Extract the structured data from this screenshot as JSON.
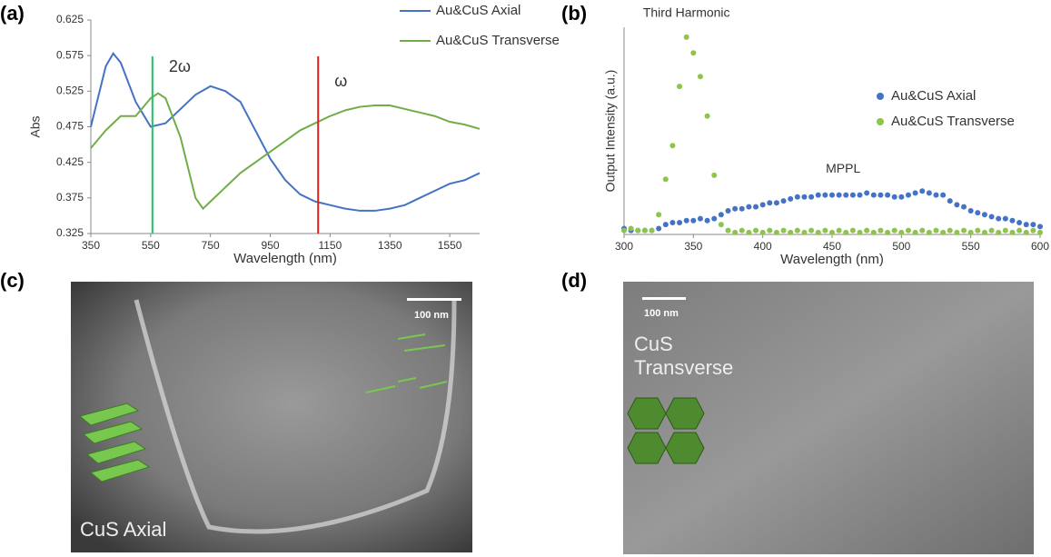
{
  "panel_labels": [
    "(a)",
    "(b)",
    "(c)",
    "(d)"
  ],
  "images": [
    {
      "scale_bar": "100 nm",
      "caption": "CuS Axial"
    },
    {
      "scale_bar": "100 nm",
      "caption": "CuS Transverse"
    }
  ],
  "chart_data": [
    {
      "type": "line",
      "ylabel": "Abs",
      "xlabel": "Wavelength (nm)",
      "xlim": [
        350,
        1650
      ],
      "ylim": [
        0.325,
        0.625
      ],
      "xticks": [
        350,
        550,
        750,
        950,
        1150,
        1350,
        1550
      ],
      "yticks": [
        0.325,
        0.375,
        0.425,
        0.475,
        0.525,
        0.575,
        0.625
      ],
      "vlines": [
        {
          "x": 556,
          "color": "#1fc46a",
          "label": "2ω"
        },
        {
          "x": 1110,
          "color": "#e0201f",
          "label": "ω"
        }
      ],
      "series": [
        {
          "name": "Au&CuS Axial",
          "color": "#4472c4",
          "x": [
            350,
            400,
            425,
            450,
            500,
            550,
            600,
            650,
            700,
            750,
            800,
            850,
            900,
            950,
            1000,
            1050,
            1100,
            1150,
            1200,
            1250,
            1300,
            1350,
            1400,
            1450,
            1500,
            1550,
            1600,
            1650
          ],
          "values": [
            0.475,
            0.56,
            0.578,
            0.565,
            0.51,
            0.475,
            0.48,
            0.5,
            0.52,
            0.532,
            0.525,
            0.51,
            0.47,
            0.43,
            0.4,
            0.38,
            0.37,
            0.365,
            0.36,
            0.357,
            0.357,
            0.36,
            0.365,
            0.375,
            0.385,
            0.395,
            0.4,
            0.41
          ]
        },
        {
          "name": "Au&CuS Transverse",
          "color": "#70ad47",
          "x": [
            350,
            400,
            450,
            500,
            550,
            575,
            600,
            650,
            700,
            725,
            750,
            800,
            850,
            900,
            950,
            1000,
            1050,
            1100,
            1150,
            1200,
            1250,
            1300,
            1350,
            1400,
            1450,
            1500,
            1550,
            1600,
            1650
          ],
          "values": [
            0.445,
            0.47,
            0.49,
            0.49,
            0.515,
            0.522,
            0.515,
            0.46,
            0.375,
            0.36,
            0.37,
            0.39,
            0.41,
            0.425,
            0.44,
            0.455,
            0.47,
            0.48,
            0.49,
            0.498,
            0.503,
            0.505,
            0.505,
            0.5,
            0.495,
            0.49,
            0.482,
            0.478,
            0.472
          ]
        }
      ]
    },
    {
      "type": "scatter",
      "ylabel": "Output Intensity (a.u.)",
      "xlabel": "Wavelength (nm)",
      "xlim": [
        300,
        600
      ],
      "ylim": [
        0,
        1.05
      ],
      "xticks": [
        300,
        350,
        400,
        450,
        500,
        550,
        600
      ],
      "annotations": [
        {
          "text": "Third Harmonic",
          "x": 345,
          "y": 1.12
        },
        {
          "text": "MPPL",
          "x": 458,
          "y": 0.33
        }
      ],
      "x": [
        300,
        305,
        310,
        315,
        320,
        325,
        330,
        335,
        340,
        345,
        350,
        355,
        360,
        365,
        370,
        375,
        380,
        385,
        390,
        395,
        400,
        405,
        410,
        415,
        420,
        425,
        430,
        435,
        440,
        445,
        450,
        455,
        460,
        465,
        470,
        475,
        480,
        485,
        490,
        495,
        500,
        505,
        510,
        515,
        520,
        525,
        530,
        535,
        540,
        545,
        550,
        555,
        560,
        565,
        570,
        575,
        580,
        585,
        590,
        595,
        600
      ],
      "series": [
        {
          "name": "Au&CuS Axial",
          "color": "#4472c4",
          "values": [
            0.03,
            0.02,
            0.02,
            0.02,
            0.02,
            0.03,
            0.05,
            0.06,
            0.06,
            0.07,
            0.07,
            0.08,
            0.07,
            0.08,
            0.1,
            0.12,
            0.13,
            0.13,
            0.14,
            0.14,
            0.15,
            0.16,
            0.16,
            0.17,
            0.18,
            0.19,
            0.19,
            0.19,
            0.2,
            0.2,
            0.2,
            0.2,
            0.2,
            0.2,
            0.2,
            0.21,
            0.2,
            0.2,
            0.2,
            0.19,
            0.19,
            0.2,
            0.21,
            0.22,
            0.21,
            0.2,
            0.2,
            0.17,
            0.15,
            0.14,
            0.12,
            0.11,
            0.1,
            0.09,
            0.08,
            0.08,
            0.07,
            0.06,
            0.05,
            0.05,
            0.04
          ]
        },
        {
          "name": "Au&CuS Transverse",
          "color": "#8dc449",
          "values": [
            0.02,
            0.03,
            0.02,
            0.02,
            0.02,
            0.1,
            0.28,
            0.45,
            0.75,
            1.0,
            0.92,
            0.8,
            0.6,
            0.3,
            0.05,
            0.02,
            0.01,
            0.02,
            0.01,
            0.02,
            0.01,
            0.02,
            0.01,
            0.02,
            0.01,
            0.02,
            0.01,
            0.02,
            0.01,
            0.02,
            0.01,
            0.02,
            0.01,
            0.02,
            0.01,
            0.02,
            0.01,
            0.02,
            0.01,
            0.02,
            0.01,
            0.02,
            0.01,
            0.02,
            0.01,
            0.02,
            0.01,
            0.02,
            0.01,
            0.02,
            0.01,
            0.02,
            0.01,
            0.02,
            0.01,
            0.02,
            0.01,
            0.02,
            0.01,
            0.02,
            0.01
          ]
        }
      ]
    }
  ]
}
